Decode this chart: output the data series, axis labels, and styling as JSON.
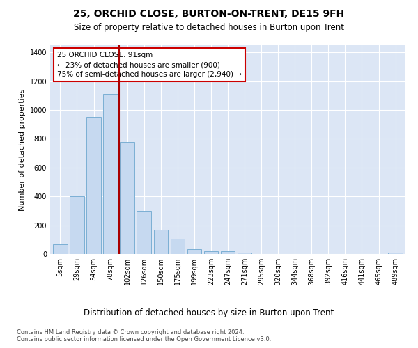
{
  "title": "25, ORCHID CLOSE, BURTON-ON-TRENT, DE15 9FH",
  "subtitle": "Size of property relative to detached houses in Burton upon Trent",
  "xlabel_bottom": "Distribution of detached houses by size in Burton upon Trent",
  "ylabel": "Number of detached properties",
  "footnote1": "Contains HM Land Registry data © Crown copyright and database right 2024.",
  "footnote2": "Contains public sector information licensed under the Open Government Licence v3.0.",
  "bar_categories": [
    "5sqm",
    "29sqm",
    "54sqm",
    "78sqm",
    "102sqm",
    "126sqm",
    "150sqm",
    "175sqm",
    "199sqm",
    "223sqm",
    "247sqm",
    "271sqm",
    "295sqm",
    "320sqm",
    "344sqm",
    "368sqm",
    "392sqm",
    "416sqm",
    "441sqm",
    "465sqm",
    "489sqm"
  ],
  "bar_values": [
    70,
    400,
    950,
    1110,
    780,
    300,
    170,
    105,
    35,
    20,
    20,
    12,
    0,
    0,
    0,
    0,
    0,
    0,
    0,
    0,
    12
  ],
  "bar_color": "#c6d9f0",
  "bar_edgecolor": "#7bafd4",
  "vline_x": 3.5,
  "vline_color": "#aa0000",
  "annotation_text": "25 ORCHID CLOSE: 91sqm\n← 23% of detached houses are smaller (900)\n75% of semi-detached houses are larger (2,940) →",
  "annotation_box_color": "#ffffff",
  "annotation_box_edgecolor": "#cc0000",
  "ylim": [
    0,
    1450
  ],
  "yticks": [
    0,
    200,
    400,
    600,
    800,
    1000,
    1200,
    1400
  ],
  "background_color": "#dce6f5",
  "title_fontsize": 10,
  "subtitle_fontsize": 8.5,
  "footnote_fontsize": 6.0,
  "xlabel_fontsize": 8.5,
  "ylabel_fontsize": 8,
  "tick_fontsize": 7,
  "annotation_fontsize": 7.5
}
